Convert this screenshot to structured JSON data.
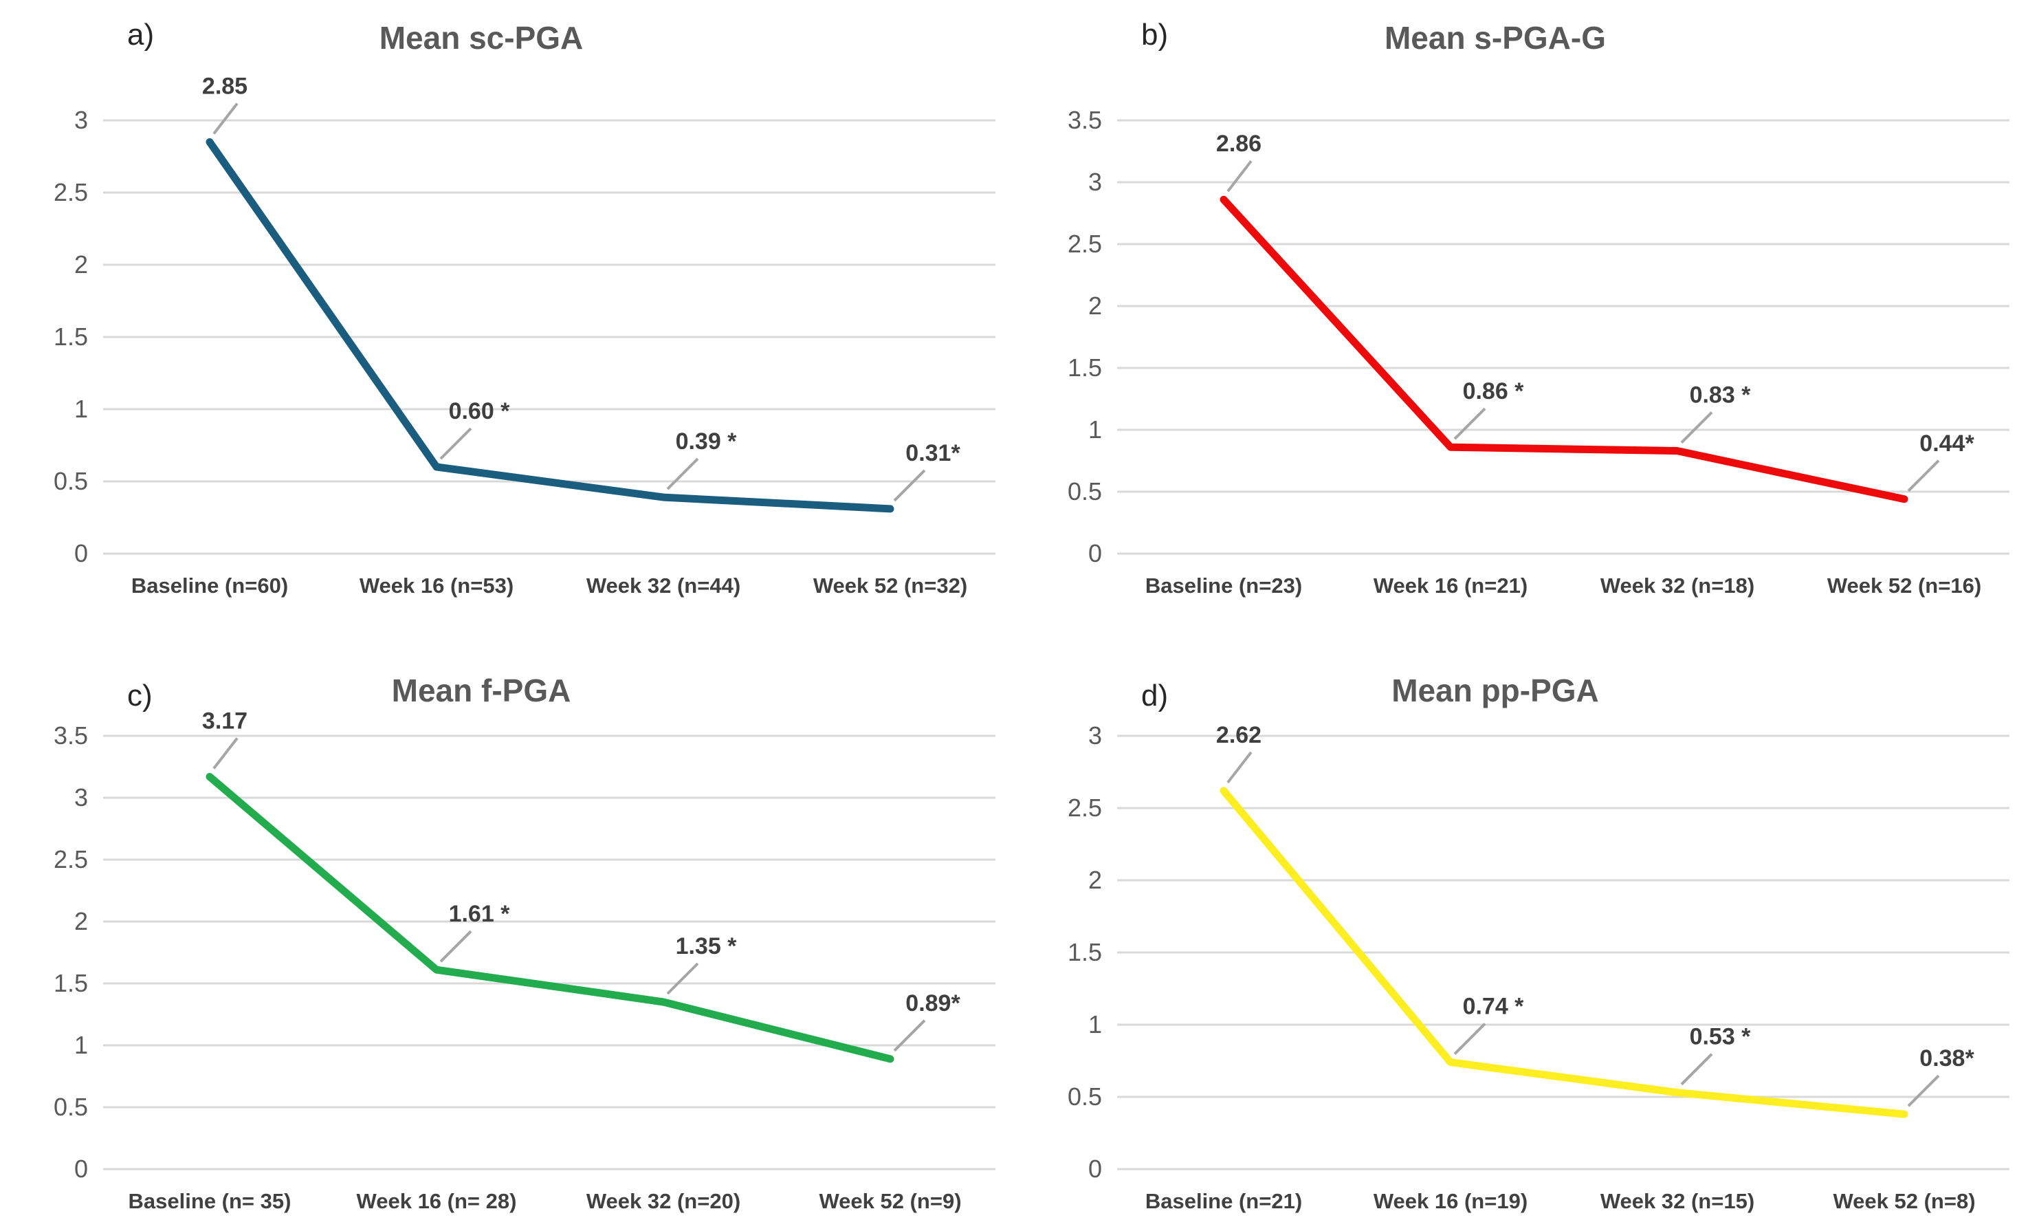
{
  "styles": {
    "background": "#FFFFFF",
    "grid_color": "#D9D9D9",
    "axis_tick_color": "#595959",
    "x_label_color": "#404040",
    "data_label_color": "#3F3F3F",
    "leader_color": "#A6A6A6",
    "title_color": "#595959",
    "panel_color": "#262626"
  },
  "chart_data": [
    {
      "type": "line",
      "panel": "a)",
      "title": "Mean sc-PGA",
      "line_color": "#1A5D7F",
      "categories": [
        "Baseline (n=60)",
        "Week 16 (n=53)",
        "Week 32 (n=44)",
        "Week 52 (n=32)"
      ],
      "values": [
        2.85,
        0.6,
        0.39,
        0.31
      ],
      "point_labels": [
        "2.85",
        "0.60 *",
        "0.39 *",
        "0.31*"
      ],
      "xlabel": "",
      "ylabel": "",
      "ylim": [
        0,
        3
      ],
      "ytick_step": 0.5,
      "yticks": [
        "3",
        "2.5",
        "2",
        "1.5",
        "1",
        "0.5",
        "0"
      ],
      "grid": true,
      "legend": "none"
    },
    {
      "type": "line",
      "panel": "b)",
      "title": "Mean s-PGA-G",
      "line_color": "#EE0A0A",
      "categories": [
        "Baseline (n=23)",
        "Week 16 (n=21)",
        "Week 32 (n=18)",
        "Week 52 (n=16)"
      ],
      "values": [
        2.86,
        0.86,
        0.83,
        0.44
      ],
      "point_labels": [
        "2.86",
        "0.86 *",
        "0.83 *",
        "0.44*"
      ],
      "xlabel": "",
      "ylabel": "",
      "ylim": [
        0,
        3.5
      ],
      "ytick_step": 0.5,
      "yticks": [
        "3.5",
        "3",
        "2.5",
        "2",
        "1.5",
        "1",
        "0.5",
        "0"
      ],
      "grid": true,
      "legend": "none"
    },
    {
      "type": "line",
      "panel": "c)",
      "title": "Mean f-PGA",
      "line_color": "#23AC4D",
      "categories": [
        "Baseline (n= 35)",
        "Week 16 (n= 28)",
        "Week 32 (n=20)",
        "Week 52 (n=9)"
      ],
      "values": [
        3.17,
        1.61,
        1.35,
        0.89
      ],
      "point_labels": [
        "3.17",
        "1.61 *",
        "1.35 *",
        "0.89*"
      ],
      "xlabel": "",
      "ylabel": "",
      "ylim": [
        0,
        3.5
      ],
      "ytick_step": 0.5,
      "yticks": [
        "3.5",
        "3",
        "2.5",
        "2",
        "1.5",
        "1",
        "0.5",
        "0"
      ],
      "grid": true,
      "legend": "none"
    },
    {
      "type": "line",
      "panel": "d)",
      "title": "Mean pp-PGA",
      "line_color": "#FCEE21",
      "categories": [
        "Baseline (n=21)",
        "Week 16 (n=19)",
        "Week 32 (n=15)",
        "Week 52 (n=8)"
      ],
      "values": [
        2.62,
        0.74,
        0.53,
        0.38
      ],
      "point_labels": [
        "2.62",
        "0.74 *",
        "0.53 *",
        "0.38*"
      ],
      "xlabel": "",
      "ylabel": "",
      "ylim": [
        0,
        3
      ],
      "ytick_step": 0.5,
      "yticks": [
        "3",
        "2.5",
        "2",
        "1.5",
        "1",
        "0.5",
        "0"
      ],
      "grid": true,
      "legend": "none"
    }
  ]
}
